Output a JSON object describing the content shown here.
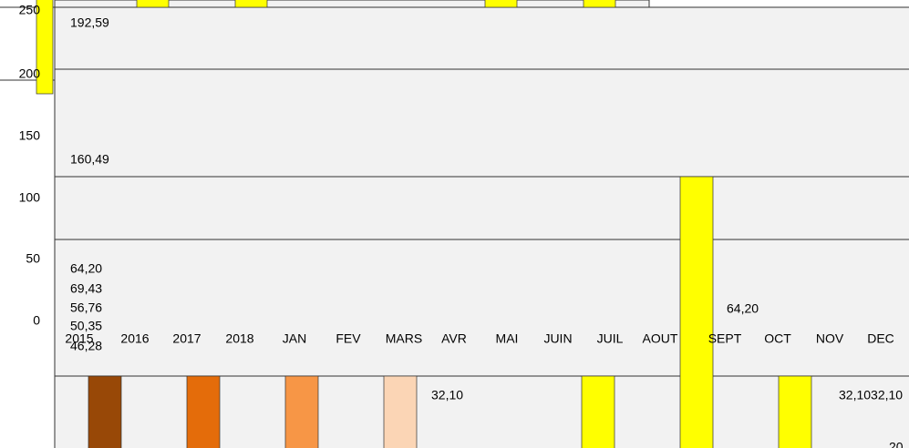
{
  "y_axis_labels": [
    "250",
    "200",
    "150",
    "100",
    "50",
    "0"
  ],
  "categories": [
    "2015",
    "2016",
    "2017",
    "2018",
    "JAN",
    "FEV",
    "MARS",
    "AVR",
    "MAI",
    "JUIN",
    "JUIL",
    "AOUT",
    "SEPT",
    "OCT",
    "NOV",
    "DEC"
  ],
  "data_labels": [
    "192,59",
    "160,49",
    "64,20",
    "69,43",
    "56,76",
    "50,35",
    "46,28",
    "64,20",
    "32,10",
    "32,1032,10",
    "20"
  ]
}
